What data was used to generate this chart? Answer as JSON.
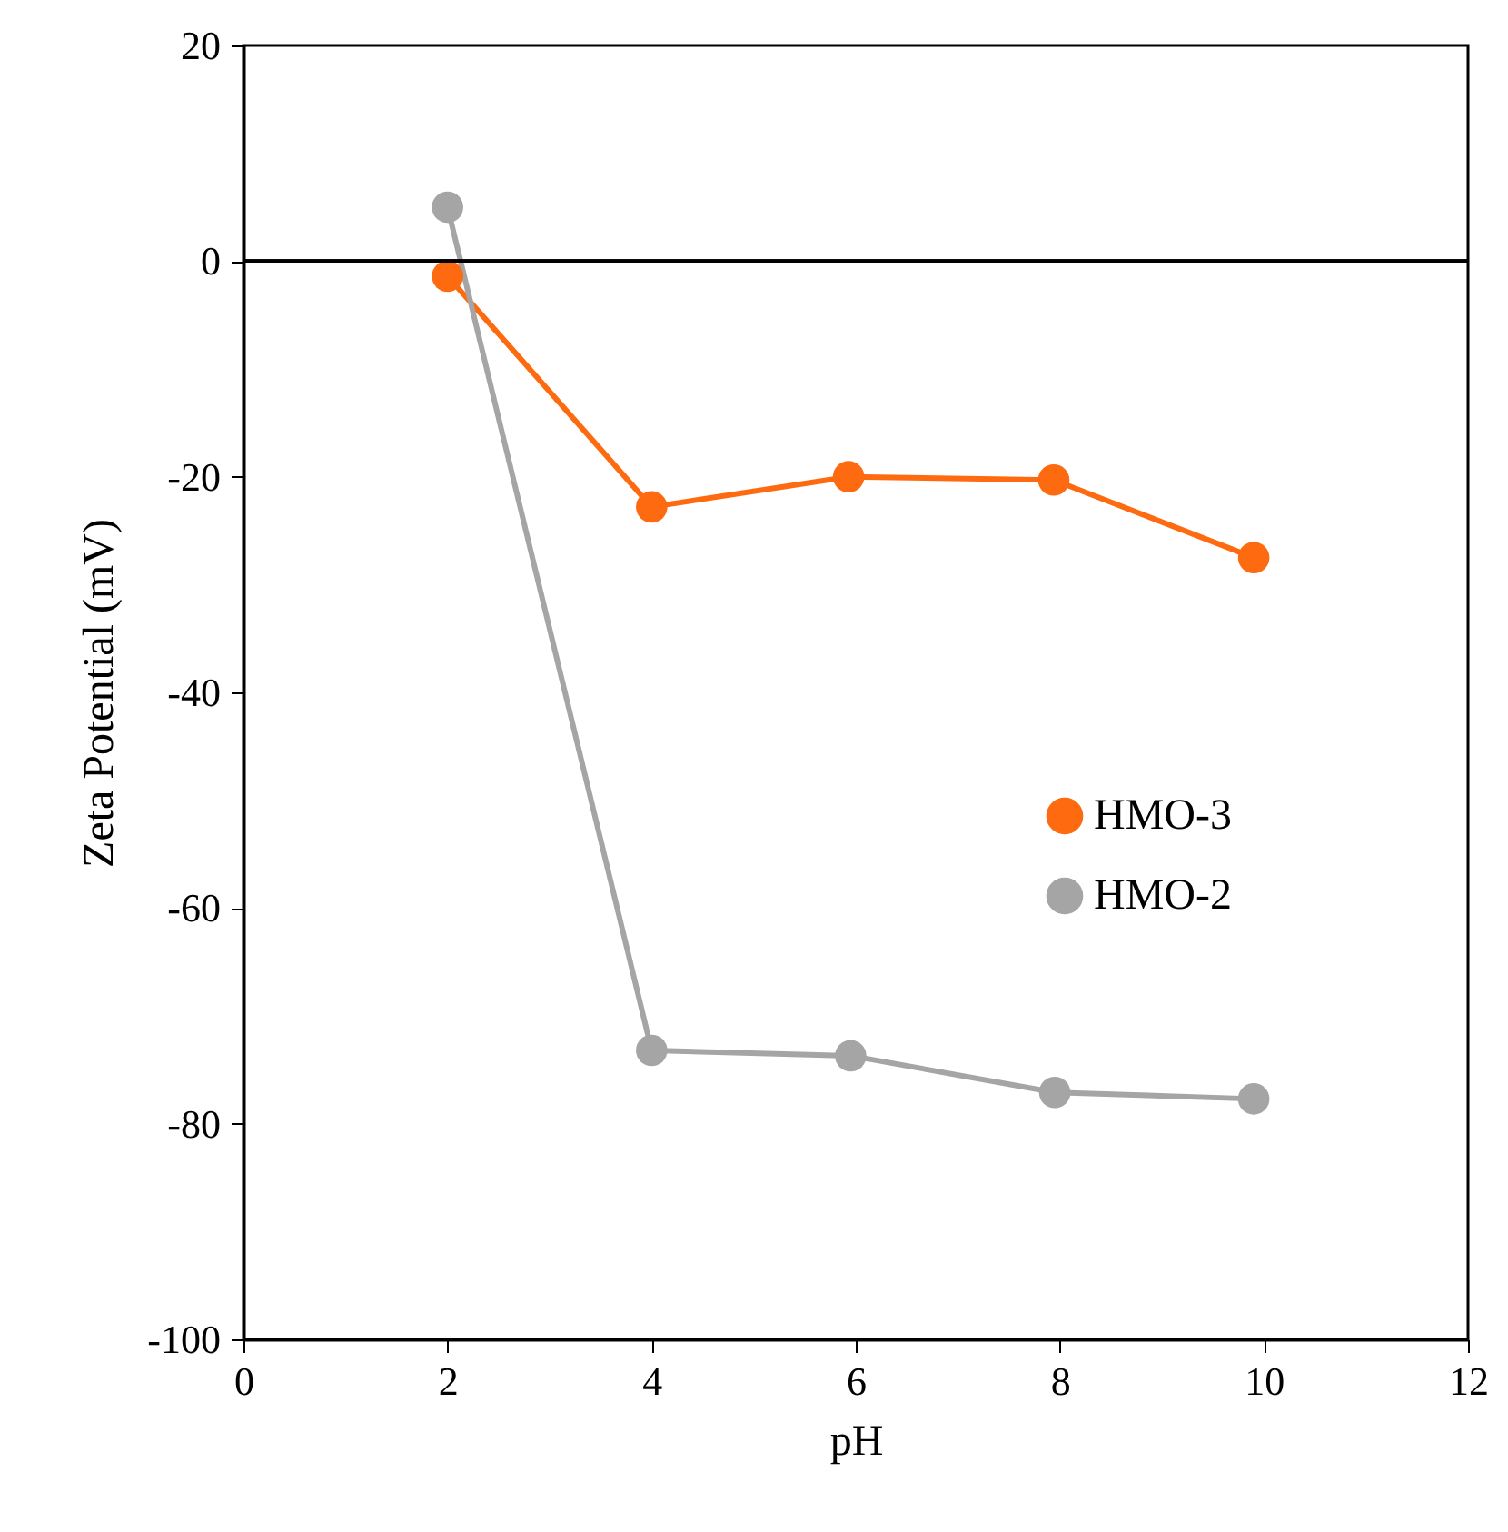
{
  "chart_data": {
    "type": "line",
    "xlabel": "pH",
    "ylabel": "Zeta Potential (mV)",
    "xlim": [
      0,
      12
    ],
    "xticks": [
      0,
      2,
      4,
      6,
      8,
      10,
      12
    ],
    "ylim": [
      -100,
      20
    ],
    "yticks": [
      -100,
      -80,
      -60,
      -40,
      -20,
      0,
      20
    ],
    "series": [
      {
        "name": "HMO-3",
        "color": "#fe6a10",
        "x": [
          2,
          4,
          5.93,
          7.94,
          9.9
        ],
        "values": [
          -1.4,
          -22.8,
          -20.0,
          -20.3,
          -27.5
        ]
      },
      {
        "name": "HMO-2",
        "color": "#a5a5a5",
        "x": [
          2,
          4,
          5.95,
          7.95,
          9.9
        ],
        "values": [
          5.0,
          -73.2,
          -73.7,
          -77.1,
          -77.7
        ]
      }
    ],
    "ref_lines": [
      {
        "axis": "y",
        "value": 0,
        "color": "#000000"
      }
    ],
    "grid": false,
    "legend": "right",
    "marker": "circle",
    "line_style": "solid"
  }
}
